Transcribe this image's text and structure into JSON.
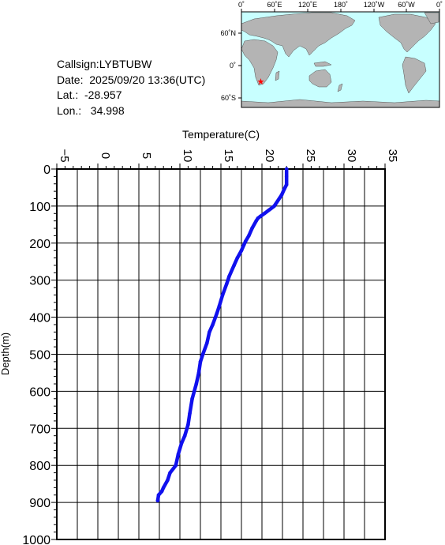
{
  "station": {
    "callsign": "Callsign:LYBTUBW",
    "date": "Date:  2025/09/20 13:36(UTC)",
    "lat": "Lat.:  -28.957",
    "lon": "Lon.:   34.998"
  },
  "colors": {
    "profile": "#1010ee",
    "ocean": "#c8ffff",
    "land": "#b4b4b4",
    "marker": "#ff0000"
  },
  "map": {
    "lon_labels": [
      "0˚",
      "60˚E",
      "120˚E",
      "180˚",
      "120˚W",
      "60˚W",
      "0˚"
    ],
    "lat_labels": [
      "60˚N",
      "0˚",
      "60˚S"
    ],
    "marker": {
      "lat": -28.957,
      "lon": 34.998
    }
  },
  "chart_data": {
    "type": "line",
    "title": "",
    "xlabel": "Temperature(C)",
    "ylabel": "Depth(m)",
    "xlim": [
      -5,
      35
    ],
    "ylim": [
      0,
      1000
    ],
    "y_inverted": true,
    "x_axis_position": "top",
    "grid": true,
    "x_ticks": [
      "-5",
      "0",
      "5",
      "10",
      "15",
      "20",
      "25",
      "30",
      "35"
    ],
    "y_ticks": [
      "0",
      "100",
      "200",
      "300",
      "400",
      "500",
      "600",
      "700",
      "800",
      "900",
      "1000"
    ],
    "series": [
      {
        "temperature": [
          23.0,
          23.0,
          23.0,
          22.7,
          22.4,
          21.5,
          20.3,
          19.8,
          19.5,
          19.3,
          18.8,
          18.4,
          18.0,
          17.8,
          17.5,
          17.0,
          16.6,
          16.0,
          15.7,
          15.2,
          14.8,
          14.5,
          14.0,
          13.6,
          13.3,
          12.8,
          12.5,
          12.3,
          12.0,
          11.5,
          11.2,
          11.0,
          10.6,
          10.2,
          9.8,
          9.5,
          8.8,
          8.5,
          8.0,
          7.8,
          7.4,
          7.3
        ],
        "depth": [
          0,
          20,
          42,
          55,
          70,
          100,
          120,
          128,
          133,
          140,
          160,
          180,
          195,
          205,
          220,
          240,
          260,
          290,
          310,
          340,
          370,
          390,
          420,
          440,
          470,
          500,
          520,
          550,
          580,
          620,
          660,
          690,
          720,
          740,
          770,
          800,
          820,
          840,
          860,
          870,
          880,
          895
        ]
      }
    ]
  }
}
